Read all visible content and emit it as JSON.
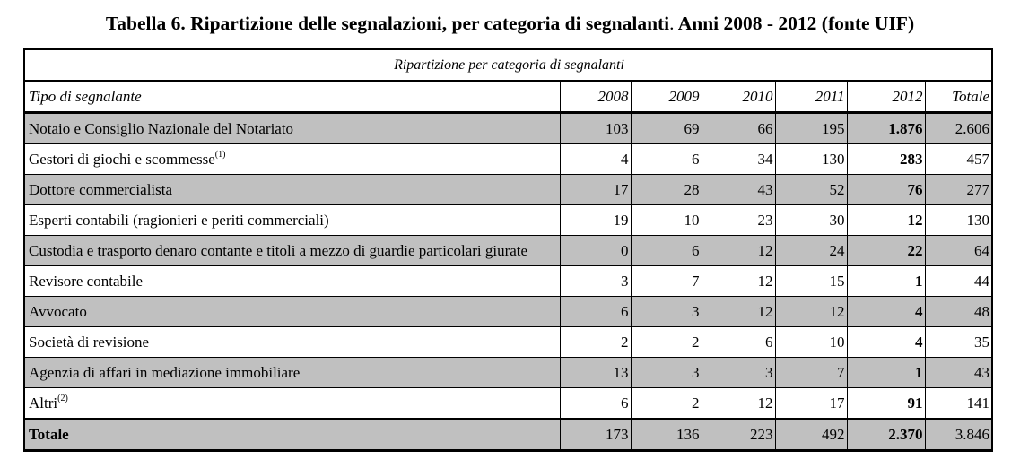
{
  "title": {
    "main": "Tabella 6. Ripartizione delle segnalazioni, per categoria di segnalanti",
    "sep": ".",
    "years": " Anni 2008 - 2012 (fonte UIF)"
  },
  "table": {
    "banner": "Ripartizione per categoria di segnalanti",
    "headers": [
      "Tipo di segnalante",
      "2008",
      "2009",
      "2010",
      "2011",
      "2012",
      "Totale"
    ],
    "rows": [
      {
        "label": "Notaio e Consiglio Nazionale del Notariato",
        "note": "",
        "values": [
          "103",
          "69",
          "66",
          "195",
          "1.876",
          "2.606"
        ]
      },
      {
        "label": "Gestori di giochi e scommesse",
        "note": "(1)",
        "values": [
          "4",
          "6",
          "34",
          "130",
          "283",
          "457"
        ]
      },
      {
        "label": "Dottore commercialista",
        "note": "",
        "values": [
          "17",
          "28",
          "43",
          "52",
          "76",
          "277"
        ]
      },
      {
        "label": "Esperti contabili (ragionieri e periti commerciali)",
        "note": "",
        "values": [
          "19",
          "10",
          "23",
          "30",
          "12",
          "130"
        ]
      },
      {
        "label": "Custodia e trasporto denaro contante e titoli a mezzo di guardie particolari giurate",
        "note": "",
        "values": [
          "0",
          "6",
          "12",
          "24",
          "22",
          "64"
        ]
      },
      {
        "label": "Revisore contabile",
        "note": "",
        "values": [
          "3",
          "7",
          "12",
          "15",
          "1",
          "44"
        ]
      },
      {
        "label": "Avvocato",
        "note": "",
        "values": [
          "6",
          "3",
          "12",
          "12",
          "4",
          "48"
        ]
      },
      {
        "label": "Società di revisione",
        "note": "",
        "values": [
          "2",
          "2",
          "6",
          "10",
          "4",
          "35"
        ]
      },
      {
        "label": "Agenzia di affari in mediazione immobiliare",
        "note": "",
        "values": [
          "13",
          "3",
          "3",
          "7",
          "1",
          "43"
        ]
      },
      {
        "label": "Altri",
        "note": "(2)",
        "values": [
          "6",
          "2",
          "12",
          "17",
          "91",
          "141"
        ]
      }
    ],
    "total": {
      "label": "Totale",
      "values": [
        "173",
        "136",
        "223",
        "492",
        "2.370",
        "3.846"
      ]
    }
  },
  "colors": {
    "shade": "#c0c0c0",
    "border": "#000000"
  }
}
